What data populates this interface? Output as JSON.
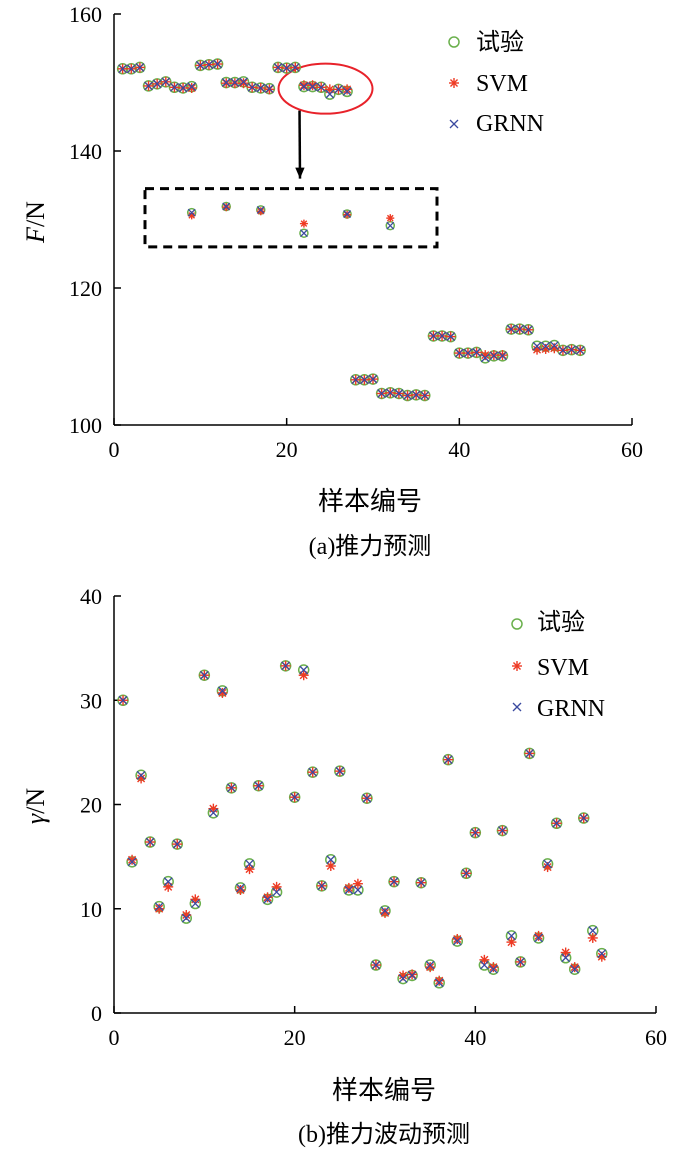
{
  "colors": {
    "exp": "#6ab04c",
    "svm": "#ee3a24",
    "grnn": "#3b4aa0",
    "axis": "#000000",
    "highlight": "#e8222a"
  },
  "chart_data": [
    {
      "type": "scatter",
      "caption": "(a)推力预测",
      "xlabel": "样本编号",
      "ylabel_italic": "F",
      "ylabel_unit": "/N",
      "xlim": [
        0,
        60
      ],
      "ylim": [
        100,
        160
      ],
      "xticks": [
        "0",
        "20",
        "40",
        "60"
      ],
      "yticks": [
        "100",
        "120",
        "140",
        "160"
      ],
      "legend": [
        "试验",
        "SVM",
        "GRNN"
      ],
      "legend_position": "top-right",
      "grid": false,
      "x": [
        1,
        2,
        3,
        4,
        5,
        6,
        7,
        8,
        9,
        10,
        11,
        12,
        13,
        14,
        15,
        16,
        17,
        18,
        19,
        20,
        21,
        22,
        23,
        24,
        25,
        26,
        27,
        28,
        29,
        30,
        31,
        32,
        33,
        34,
        35,
        36,
        37,
        38,
        39,
        40,
        41,
        42,
        43,
        44,
        45,
        46,
        47,
        48,
        49,
        50,
        51,
        52,
        53,
        54
      ],
      "series": [
        {
          "name": "试验",
          "marker": "circle",
          "values": [
            152,
            152,
            152.2,
            149.5,
            149.8,
            150.1,
            149.3,
            149.2,
            149.4,
            152.5,
            152.6,
            152.7,
            150,
            150,
            150.1,
            149.3,
            149.2,
            149.1,
            152.2,
            152.1,
            152.2,
            149.4,
            149.4,
            149.3,
            148.3,
            149,
            148.7,
            106.6,
            106.6,
            106.7,
            104.6,
            104.7,
            104.6,
            104.3,
            104.4,
            104.3,
            113,
            113,
            112.9,
            110.5,
            110.5,
            110.6,
            109.8,
            110.1,
            110.1,
            114,
            114,
            113.9,
            111.5,
            111.5,
            111.6,
            110.9,
            111,
            110.9
          ]
        },
        {
          "name": "SVM",
          "marker": "asterisk",
          "values": [
            152,
            152,
            152.2,
            149.5,
            149.8,
            150.1,
            149.3,
            149.2,
            149.2,
            152.5,
            152.6,
            152.7,
            149.9,
            149.9,
            149.9,
            149.3,
            149.2,
            149.0,
            152.2,
            152.1,
            152.2,
            149.6,
            149.6,
            149.3,
            149.0,
            149,
            149,
            106.6,
            106.6,
            106.7,
            104.6,
            104.7,
            104.6,
            104.3,
            104.4,
            104.3,
            113,
            113,
            112.9,
            110.5,
            110.5,
            110.6,
            110.2,
            110.2,
            110.2,
            114,
            114,
            113.9,
            111.0,
            111.1,
            111.2,
            110.9,
            111,
            110.9
          ]
        },
        {
          "name": "GRNN",
          "marker": "cross",
          "values": [
            152,
            152,
            152.2,
            149.5,
            149.8,
            150.1,
            149.3,
            149.2,
            149.4,
            152.5,
            152.6,
            152.7,
            150,
            150,
            150.1,
            149.3,
            149.2,
            149.1,
            152.2,
            152.1,
            152.2,
            149.4,
            149.4,
            149.3,
            148.3,
            149,
            148.7,
            106.6,
            106.6,
            106.7,
            104.6,
            104.7,
            104.6,
            104.3,
            104.4,
            104.3,
            113,
            113,
            112.9,
            110.5,
            110.5,
            110.6,
            109.8,
            110.1,
            110.1,
            114,
            114,
            113.9,
            111.5,
            111.5,
            111.6,
            110.9,
            111,
            110.9
          ]
        }
      ],
      "zoom_inset": {
        "source_x_range": [
          22,
          28
        ],
        "target_ylim": [
          126,
          134.5
        ],
        "x": [
          9,
          13,
          17,
          22,
          27,
          32
        ],
        "experiment": [
          131,
          131.9,
          131.4,
          128,
          130.8,
          129.1
        ],
        "svm": [
          130.6,
          131.8,
          131.2,
          129.4,
          130.7,
          130.2
        ],
        "grnn": [
          131,
          131.9,
          131.4,
          128,
          130.8,
          129.1
        ]
      }
    },
    {
      "type": "scatter",
      "caption": "(b)推力波动预测",
      "xlabel": "样本编号",
      "ylabel_italic": "γ",
      "ylabel_unit": "/N",
      "xlim": [
        0,
        60
      ],
      "ylim": [
        0,
        40
      ],
      "xticks": [
        "0",
        "20",
        "40",
        "60"
      ],
      "yticks": [
        "0",
        "10",
        "20",
        "30",
        "40"
      ],
      "legend": [
        "试验",
        "SVM",
        "GRNN"
      ],
      "legend_position": "top-right",
      "grid": false,
      "x": [
        1,
        2,
        3,
        4,
        5,
        6,
        7,
        8,
        9,
        10,
        11,
        12,
        13,
        14,
        15,
        16,
        17,
        18,
        19,
        20,
        21,
        22,
        23,
        24,
        25,
        26,
        27,
        28,
        29,
        30,
        31,
        32,
        33,
        34,
        35,
        36,
        37,
        38,
        39,
        40,
        41,
        42,
        43,
        44,
        45,
        46,
        47,
        48,
        49,
        50,
        51,
        52,
        53,
        54
      ],
      "series": [
        {
          "name": "试验",
          "marker": "circle",
          "values": [
            30,
            14.5,
            22.8,
            16.4,
            10.2,
            12.6,
            16.2,
            9.1,
            10.5,
            32.4,
            19.2,
            30.9,
            21.6,
            12,
            14.3,
            21.8,
            10.9,
            11.6,
            33.3,
            20.7,
            32.9,
            23.1,
            12.2,
            14.7,
            23.2,
            11.8,
            11.8,
            20.6,
            4.6,
            9.8,
            12.6,
            3.3,
            3.6,
            12.5,
            4.6,
            2.9,
            24.3,
            6.9,
            13.4,
            17.3,
            4.6,
            4.2,
            17.5,
            7.4,
            4.9,
            24.9,
            7.2,
            14.3,
            18.2,
            5.3,
            4.2,
            18.7,
            7.9,
            5.7
          ]
        },
        {
          "name": "SVM",
          "marker": "asterisk",
          "values": [
            30,
            14.7,
            22.5,
            16.4,
            10.0,
            12.1,
            16.2,
            9.4,
            10.9,
            32.4,
            19.6,
            30.7,
            21.6,
            11.8,
            13.8,
            21.8,
            11.1,
            12.1,
            33.3,
            20.7,
            32.4,
            23.1,
            12.2,
            14.1,
            23.2,
            12.0,
            12.4,
            20.6,
            4.6,
            9.6,
            12.6,
            3.6,
            3.7,
            12.5,
            4.4,
            3.1,
            24.3,
            7.1,
            13.4,
            17.3,
            5.1,
            4.4,
            17.5,
            6.8,
            4.9,
            24.9,
            7.4,
            14.0,
            18.2,
            5.8,
            4.4,
            18.7,
            7.2,
            5.4
          ]
        },
        {
          "name": "GRNN",
          "marker": "cross",
          "values": [
            30,
            14.5,
            22.8,
            16.4,
            10.2,
            12.6,
            16.2,
            9.1,
            10.5,
            32.4,
            19.2,
            30.9,
            21.6,
            12,
            14.3,
            21.8,
            10.9,
            11.6,
            33.3,
            20.7,
            32.9,
            23.1,
            12.2,
            14.7,
            23.2,
            11.8,
            11.8,
            20.6,
            4.6,
            9.8,
            12.6,
            3.3,
            3.6,
            12.5,
            4.6,
            2.9,
            24.3,
            6.9,
            13.4,
            17.3,
            4.6,
            4.2,
            17.5,
            7.4,
            4.9,
            24.9,
            7.2,
            14.3,
            18.2,
            5.3,
            4.2,
            18.7,
            7.9,
            5.7
          ]
        }
      ]
    }
  ]
}
